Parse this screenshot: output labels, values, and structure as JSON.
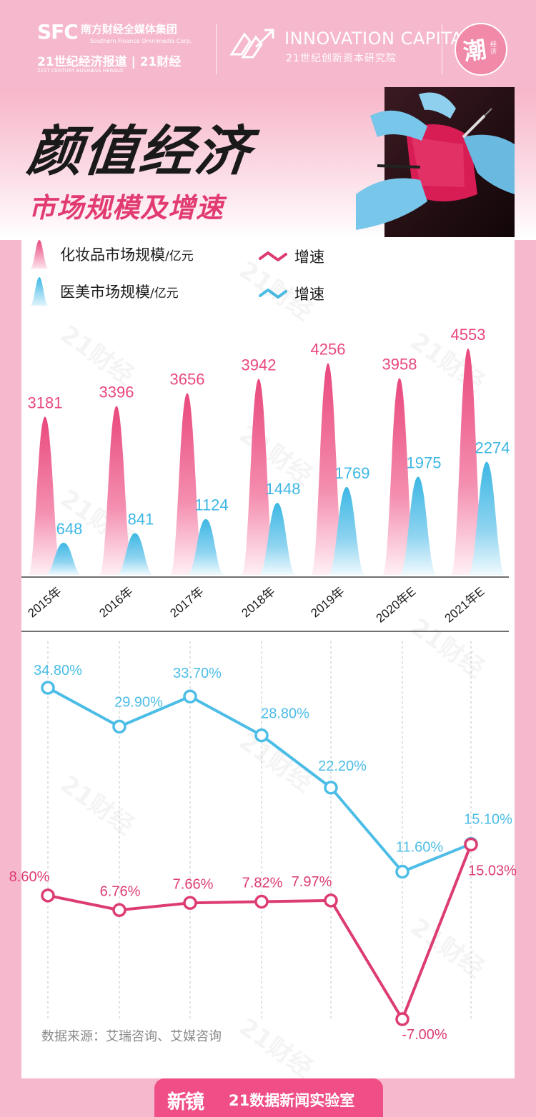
{
  "header": {
    "sfc_logo": "SFC",
    "group_name": "南方财经全媒体集团",
    "group_name_en": "Southern Finance Omnimedia Corp.",
    "herald_cn": "21世纪经济报道 | 21财经",
    "herald_en": "21ST CENTURY BUSINESS HERALD",
    "innovation_en": "INNOVATION CAPITAL",
    "innovation_cn": "21世纪创新资本研究院",
    "badge_main": "潮",
    "badge_side": "经济"
  },
  "title": {
    "main": "颜值经济",
    "sub": "市场规模及增速"
  },
  "legend": {
    "cosmetics_label": "化妆品市场规模",
    "medical_label": "医美市场规模",
    "unit": "/亿元",
    "growth_label_cosmetics": "增速",
    "growth_label_medical": "增速"
  },
  "watermark": "21财经",
  "chart_data": [
    {
      "type": "bar",
      "title": "颜值经济 市场规模及增速",
      "categories": [
        "2015年",
        "2016年",
        "2017年",
        "2018年",
        "2019年",
        "2020年E",
        "2021年E"
      ],
      "unit": "亿元",
      "series": [
        {
          "name": "化妆品市场规模",
          "color": "#e9487c",
          "values": [
            3181,
            3396,
            3656,
            3942,
            4256,
            3958,
            4553
          ]
        },
        {
          "name": "医美市场规模",
          "color": "#3db7e4",
          "values": [
            648,
            841,
            1124,
            1448,
            1769,
            1975,
            2274
          ]
        }
      ],
      "ylim": [
        0,
        4700
      ]
    },
    {
      "type": "line",
      "categories": [
        "2015年",
        "2016年",
        "2017年",
        "2018年",
        "2019年",
        "2020年E",
        "2021年E"
      ],
      "series": [
        {
          "name": "医美增速",
          "color": "#4cbde6",
          "values": [
            34.8,
            29.9,
            33.7,
            28.8,
            22.2,
            11.6,
            15.1
          ],
          "labels": [
            "34.80%",
            "29.90%",
            "33.70%",
            "28.80%",
            "22.20%",
            "11.60%",
            "15.10%"
          ]
        },
        {
          "name": "化妆品增速",
          "color": "#dd3c72",
          "values": [
            8.6,
            6.76,
            7.66,
            7.82,
            7.97,
            -7.0,
            15.03
          ],
          "labels": [
            "8.60%",
            "6.76%",
            "7.66%",
            "7.82%",
            "7.97%",
            "-7.00%",
            "15.03%"
          ]
        }
      ],
      "ylim": [
        -7,
        35
      ]
    }
  ],
  "source": "数据来源：艾瑞咨询、艾媒咨询",
  "footer": {
    "logo": "新镜",
    "lab": "21数据新闻实验室"
  }
}
